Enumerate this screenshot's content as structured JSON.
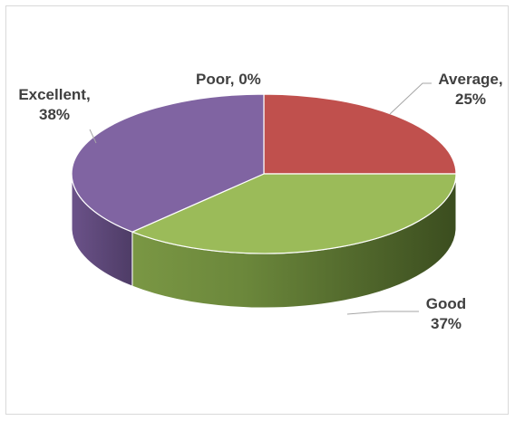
{
  "chart_data": {
    "type": "pie",
    "style": "3d",
    "categories": [
      "Poor",
      "Average",
      "Good",
      "Excellent"
    ],
    "values": [
      0,
      25,
      37,
      38
    ],
    "unit": "%",
    "data_labels": {
      "poor": {
        "line1": "Poor, 0%"
      },
      "average": {
        "line1": "Average,",
        "line2": "25%"
      },
      "good": {
        "line1": "Good",
        "line2": "37%"
      },
      "excellent": {
        "line1": "Excellent,",
        "line2": "38%"
      }
    },
    "colors": {
      "Poor": "#4f81bd",
      "Average": "#c0504d",
      "Good": "#9bbb59",
      "Excellent": "#8064a2"
    },
    "legend": "none",
    "grid": false
  }
}
